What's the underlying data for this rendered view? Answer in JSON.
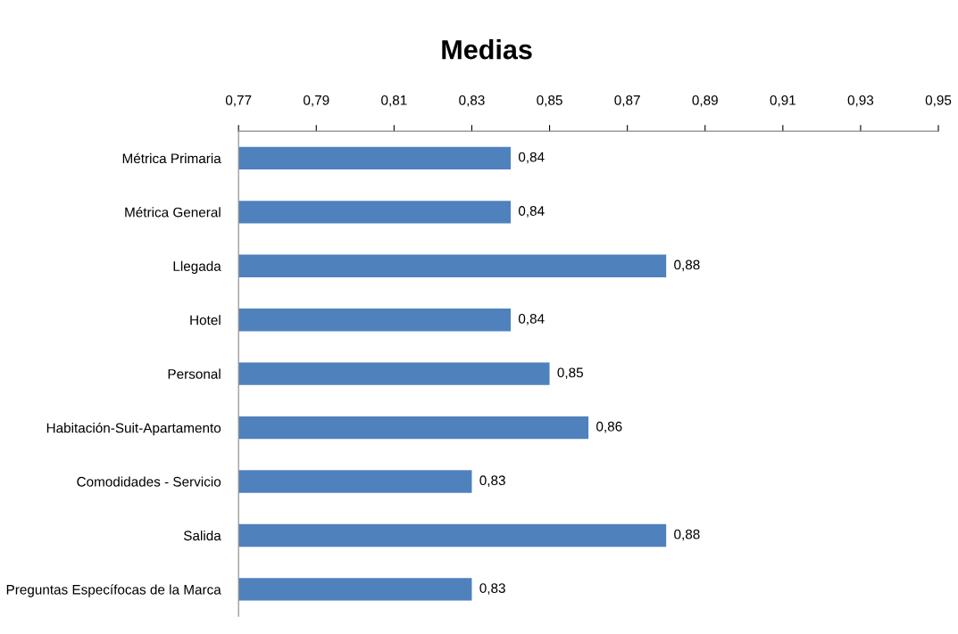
{
  "chart_data": {
    "type": "bar",
    "orientation": "horizontal",
    "title": "Medias",
    "categories": [
      "Métrica Primaria",
      "Métrica General",
      "Llegada",
      "Hotel",
      "Personal",
      "Habitación-Suit-Apartamento",
      "Comodidades - Servicio",
      "Salida",
      "Preguntas Específocas de la Marca"
    ],
    "values": [
      0.84,
      0.84,
      0.88,
      0.84,
      0.85,
      0.86,
      0.83,
      0.88,
      0.83
    ],
    "value_labels": [
      "0,84",
      "0,84",
      "0,88",
      "0,84",
      "0,85",
      "0,86",
      "0,83",
      "0,88",
      "0,83"
    ],
    "color": "#4f81bd",
    "xlim": [
      0.77,
      0.95
    ],
    "xticks": [
      {
        "value": 0.77,
        "label": "0,77"
      },
      {
        "value": 0.79,
        "label": "0,79"
      },
      {
        "value": 0.81,
        "label": "0,81"
      },
      {
        "value": 0.83,
        "label": "0,83"
      },
      {
        "value": 0.85,
        "label": "0,85"
      },
      {
        "value": 0.87,
        "label": "0,87"
      },
      {
        "value": 0.89,
        "label": "0,89"
      },
      {
        "value": 0.91,
        "label": "0,91"
      },
      {
        "value": 0.93,
        "label": "0,93"
      },
      {
        "value": 0.95,
        "label": "0,95"
      }
    ],
    "grid": false,
    "legend": false
  }
}
